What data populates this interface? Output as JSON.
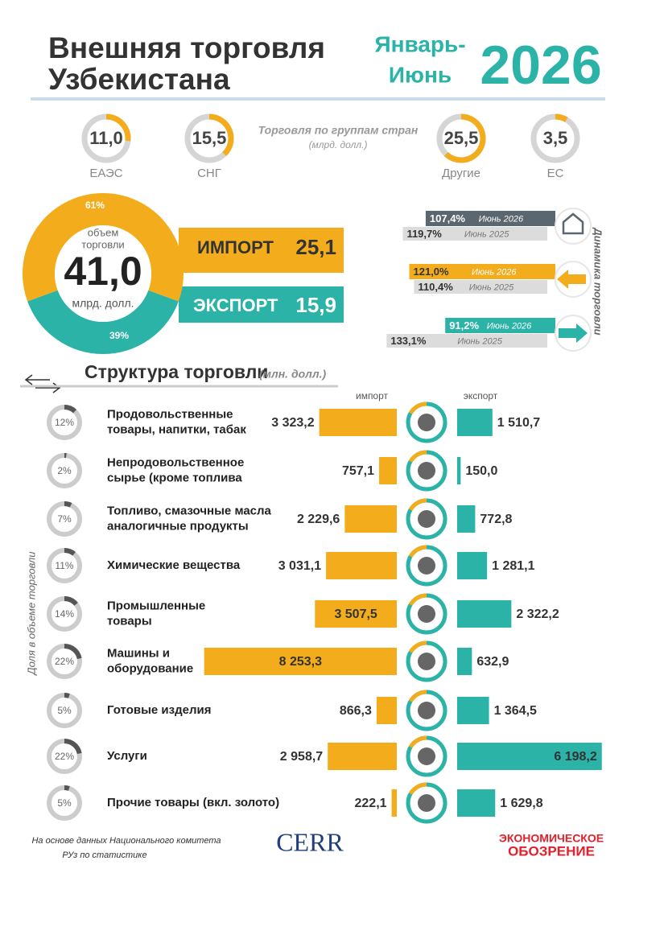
{
  "header": {
    "title": [
      "Внешняя торговля",
      "Узбекистана"
    ],
    "period": [
      "Январь-",
      "Июнь"
    ],
    "year": "2026"
  },
  "groups": {
    "title": "Торговля по группам стран",
    "unit": "(млрд. долл.)",
    "items": [
      {
        "label": "ЕАЭС",
        "value": {
          "value": 11.0,
          "label": "11,0"
        }
      },
      {
        "label": "СНГ",
        "value": {
          "value": 15.5,
          "label": "15,5"
        }
      },
      {
        "label": "Другие",
        "value": {
          "value": 25.5,
          "label": "25,5"
        }
      },
      {
        "label": "ЕС",
        "value": {
          "value": 3.5,
          "label": "3,5"
        }
      }
    ]
  },
  "total": {
    "caption": [
      "объем",
      "торговли"
    ],
    "value": {
      "value": 41.0,
      "label": "41,0"
    },
    "unit": "млрд. долл.",
    "import_share": {
      "value": 61,
      "label": "61%"
    },
    "export_share": {
      "value": 39,
      "label": "39%"
    }
  },
  "import": {
    "name": "ИМПОРТ",
    "value": {
      "value": 25.1,
      "label": "25,1"
    }
  },
  "export": {
    "name": "ЭКСПОРТ",
    "value": {
      "value": 15.9,
      "label": "15,9"
    }
  },
  "dynamics": {
    "title": "Динамика торговли",
    "groups": [
      {
        "rows": [
          {
            "value": {
              "value": 107.4,
              "label": "107,4%"
            },
            "period": "Июнь 2026"
          },
          {
            "value": {
              "value": 119.7,
              "label": "119,7%"
            },
            "period": "Июнь 2025"
          }
        ]
      },
      {
        "rows": [
          {
            "value": {
              "value": 121.0,
              "label": "121,0%"
            },
            "period": "Июнь 2026"
          },
          {
            "value": {
              "value": 110.4,
              "label": "110,4%"
            },
            "period": "Июнь 2025"
          }
        ]
      },
      {
        "rows": [
          {
            "value": {
              "value": 91.2,
              "label": "91,2%"
            },
            "period": "Июнь 2026"
          },
          {
            "value": {
              "value": 133.1,
              "label": "133,1%"
            },
            "period": "Июнь 2025"
          }
        ]
      }
    ]
  },
  "structure": {
    "title": "Структура торговли",
    "unit": "(млн. долл.)",
    "import_header": "импорт",
    "export_header": "экспорт",
    "share_axis": "Доля в объеме торговли",
    "rows": [
      {
        "share": {
          "value": 12,
          "label": "12%"
        },
        "name": [
          "Продовольственные",
          "товары, напитки, табак"
        ],
        "import": {
          "value": 3323.2,
          "label": "3 323,2"
        },
        "export": {
          "value": 1510.7,
          "label": "1 510,7"
        }
      },
      {
        "share": {
          "value": 2,
          "label": "2%"
        },
        "name": [
          "Непродовольственное",
          "сырье (кроме топлива"
        ],
        "import": {
          "value": 757.1,
          "label": "757,1"
        },
        "export": {
          "value": 150.0,
          "label": "150,0"
        }
      },
      {
        "share": {
          "value": 7,
          "label": "7%"
        },
        "name": [
          "Топливо, смазочные масла",
          "аналогичные продукты"
        ],
        "import": {
          "value": 2229.6,
          "label": "2 229,6"
        },
        "export": {
          "value": 772.8,
          "label": "772,8"
        }
      },
      {
        "share": {
          "value": 11,
          "label": "11%"
        },
        "name": [
          "Химические вещества"
        ],
        "import": {
          "value": 3031.1,
          "label": "3 031,1"
        },
        "export": {
          "value": 1281.1,
          "label": "1 281,1"
        }
      },
      {
        "share": {
          "value": 14,
          "label": "14%"
        },
        "name": [
          "Промышленные",
          "товары"
        ],
        "import": {
          "value": 3507.5,
          "label": "3 507,5"
        },
        "export": {
          "value": 2322.2,
          "label": "2 322,2"
        }
      },
      {
        "share": {
          "value": 22,
          "label": "22%"
        },
        "name": [
          "Машины и",
          "оборудование"
        ],
        "import": {
          "value": 8253.3,
          "label": "8 253,3"
        },
        "export": {
          "value": 632.9,
          "label": "632,9"
        }
      },
      {
        "share": {
          "value": 5,
          "label": "5%"
        },
        "name": [
          "Готовые изделия"
        ],
        "import": {
          "value": 866.3,
          "label": "866,3"
        },
        "export": {
          "value": 1364.5,
          "label": "1 364,5"
        }
      },
      {
        "share": {
          "value": 22,
          "label": "22%"
        },
        "name": [
          "Услуги"
        ],
        "import": {
          "value": 2958.7,
          "label": "2 958,7"
        },
        "export": {
          "value": 6198.2,
          "label": "6 198,2"
        }
      },
      {
        "share": {
          "value": 5,
          "label": "5%"
        },
        "name": [
          "Прочие товары (вкл. золото)"
        ],
        "import": {
          "value": 222.1,
          "label": "222,1"
        },
        "export": {
          "value": 1629.8,
          "label": "1 629,8"
        }
      }
    ]
  },
  "footer": {
    "source": [
      "На основе данных Национального комитета",
      "РУз по статистике"
    ],
    "logo_cerr": "CERR",
    "logo_review": [
      "ЭКОНОМИЧЕСКОЕ",
      "ОБОЗРЕНИЕ"
    ]
  }
}
